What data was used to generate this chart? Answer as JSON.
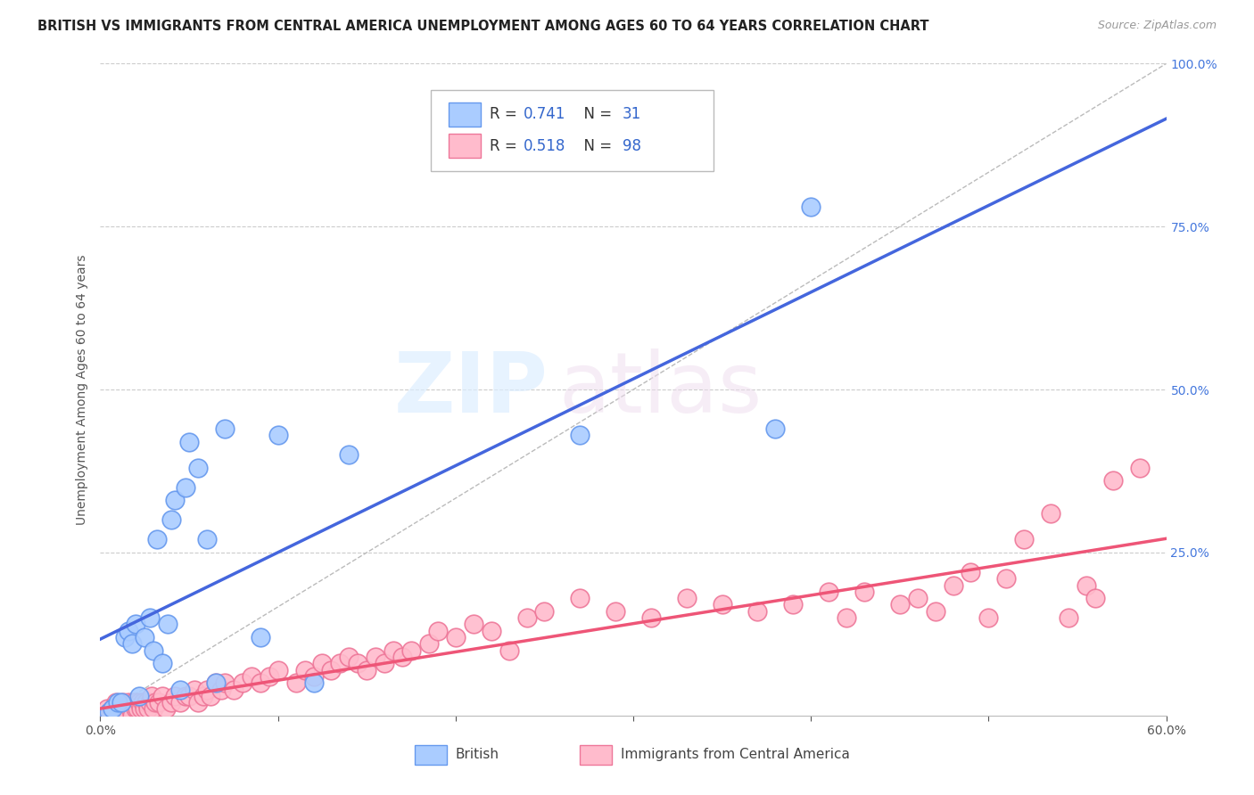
{
  "title": "BRITISH VS IMMIGRANTS FROM CENTRAL AMERICA UNEMPLOYMENT AMONG AGES 60 TO 64 YEARS CORRELATION CHART",
  "source": "Source: ZipAtlas.com",
  "ylabel": "Unemployment Among Ages 60 to 64 years",
  "xlim": [
    0.0,
    0.6
  ],
  "ylim": [
    0.0,
    1.0
  ],
  "xticks": [
    0.0,
    0.1,
    0.2,
    0.3,
    0.4,
    0.5,
    0.6
  ],
  "xtick_labels": [
    "0.0%",
    "",
    "",
    "",
    "",
    "",
    "60.0%"
  ],
  "yticks_right": [
    0.0,
    0.25,
    0.5,
    0.75,
    1.0
  ],
  "ytick_labels_right": [
    "",
    "25.0%",
    "50.0%",
    "75.0%",
    "100.0%"
  ],
  "british_color": "#aaccff",
  "british_edge": "#6699ee",
  "immigrant_color": "#ffbbcc",
  "immigrant_edge": "#ee7799",
  "regression_blue_color": "#4466dd",
  "regression_pink_color": "#ee5577",
  "diagonal_color": "#bbbbbb",
  "R_british": 0.741,
  "N_british": 31,
  "R_immigrant": 0.518,
  "N_immigrant": 98,
  "watermark_zip": "ZIP",
  "watermark_atlas": "atlas",
  "grid_color": "#cccccc",
  "background_color": "#ffffff",
  "legend_label_color": "#333333",
  "legend_value_color": "#3366cc",
  "british_x": [
    0.005,
    0.007,
    0.01,
    0.012,
    0.014,
    0.016,
    0.018,
    0.02,
    0.022,
    0.025,
    0.028,
    0.03,
    0.032,
    0.035,
    0.038,
    0.04,
    0.042,
    0.045,
    0.048,
    0.05,
    0.055,
    0.06,
    0.065,
    0.07,
    0.09,
    0.1,
    0.12,
    0.14,
    0.27,
    0.38,
    0.4
  ],
  "british_y": [
    0.005,
    0.01,
    0.02,
    0.02,
    0.12,
    0.13,
    0.11,
    0.14,
    0.03,
    0.12,
    0.15,
    0.1,
    0.27,
    0.08,
    0.14,
    0.3,
    0.33,
    0.04,
    0.35,
    0.42,
    0.38,
    0.27,
    0.05,
    0.44,
    0.12,
    0.43,
    0.05,
    0.4,
    0.43,
    0.44,
    0.78
  ],
  "immigrant_x": [
    0.002,
    0.003,
    0.004,
    0.005,
    0.006,
    0.007,
    0.008,
    0.009,
    0.01,
    0.011,
    0.012,
    0.013,
    0.014,
    0.015,
    0.016,
    0.017,
    0.018,
    0.019,
    0.02,
    0.021,
    0.022,
    0.023,
    0.024,
    0.025,
    0.026,
    0.027,
    0.028,
    0.029,
    0.03,
    0.031,
    0.033,
    0.035,
    0.037,
    0.04,
    0.042,
    0.045,
    0.048,
    0.05,
    0.053,
    0.055,
    0.058,
    0.06,
    0.062,
    0.065,
    0.068,
    0.07,
    0.075,
    0.08,
    0.085,
    0.09,
    0.095,
    0.1,
    0.11,
    0.115,
    0.12,
    0.125,
    0.13,
    0.135,
    0.14,
    0.145,
    0.15,
    0.155,
    0.16,
    0.165,
    0.17,
    0.175,
    0.185,
    0.19,
    0.2,
    0.21,
    0.22,
    0.23,
    0.24,
    0.25,
    0.27,
    0.29,
    0.31,
    0.33,
    0.35,
    0.37,
    0.39,
    0.41,
    0.42,
    0.43,
    0.45,
    0.46,
    0.47,
    0.48,
    0.49,
    0.5,
    0.51,
    0.52,
    0.535,
    0.545,
    0.555,
    0.56,
    0.57,
    0.585
  ],
  "immigrant_y": [
    0.0,
    0.0,
    0.01,
    0.0,
    0.0,
    0.01,
    0.01,
    0.02,
    0.01,
    0.0,
    0.01,
    0.02,
    0.01,
    0.0,
    0.02,
    0.01,
    0.0,
    0.02,
    0.01,
    0.01,
    0.02,
    0.01,
    0.02,
    0.01,
    0.02,
    0.01,
    0.02,
    0.03,
    0.01,
    0.02,
    0.02,
    0.03,
    0.01,
    0.02,
    0.03,
    0.02,
    0.03,
    0.03,
    0.04,
    0.02,
    0.03,
    0.04,
    0.03,
    0.05,
    0.04,
    0.05,
    0.04,
    0.05,
    0.06,
    0.05,
    0.06,
    0.07,
    0.05,
    0.07,
    0.06,
    0.08,
    0.07,
    0.08,
    0.09,
    0.08,
    0.07,
    0.09,
    0.08,
    0.1,
    0.09,
    0.1,
    0.11,
    0.13,
    0.12,
    0.14,
    0.13,
    0.1,
    0.15,
    0.16,
    0.18,
    0.16,
    0.15,
    0.18,
    0.17,
    0.16,
    0.17,
    0.19,
    0.15,
    0.19,
    0.17,
    0.18,
    0.16,
    0.2,
    0.22,
    0.15,
    0.21,
    0.27,
    0.31,
    0.15,
    0.2,
    0.18,
    0.36,
    0.38
  ]
}
